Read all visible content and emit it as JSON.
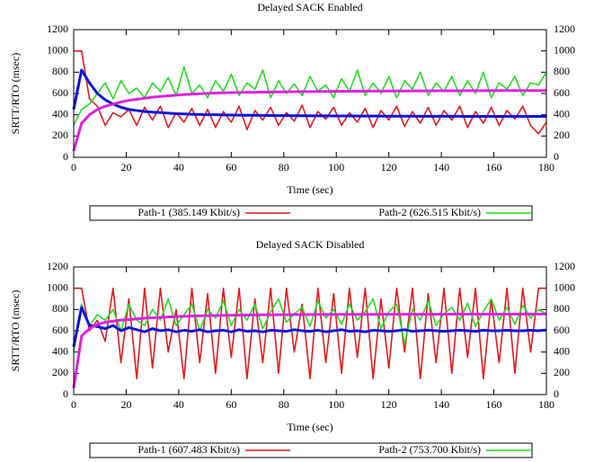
{
  "chart_data": [
    {
      "type": "line",
      "title": "Delayed SACK Enabled",
      "x_label": "Time (sec)",
      "y_label": "SRTT/RTO (msec)",
      "x": [
        0,
        3,
        6,
        9,
        12,
        15,
        18,
        21,
        24,
        27,
        30,
        33,
        36,
        39,
        42,
        45,
        48,
        51,
        54,
        57,
        60,
        63,
        66,
        69,
        72,
        75,
        78,
        81,
        84,
        87,
        90,
        93,
        96,
        99,
        102,
        105,
        108,
        111,
        114,
        117,
        120,
        123,
        126,
        129,
        132,
        135,
        138,
        141,
        144,
        147,
        150,
        153,
        156,
        159,
        162,
        165,
        168,
        171,
        174,
        177,
        180
      ],
      "xlim": [
        0,
        180
      ],
      "xticks": [
        0,
        20,
        40,
        60,
        80,
        100,
        120,
        140,
        160,
        180
      ],
      "ylim": [
        0,
        1200
      ],
      "yticks": [
        0,
        200,
        400,
        600,
        800,
        1000,
        1200
      ],
      "y2lim": [
        0,
        1200
      ],
      "y2ticks": [
        0,
        200,
        400,
        600,
        800,
        1000,
        1200
      ],
      "series": [
        {
          "name": "Path-1 (385.149 Kbit/s)",
          "color": "#e41a1c",
          "values": [
            1000,
            1000,
            550,
            480,
            300,
            420,
            380,
            450,
            300,
            470,
            350,
            480,
            280,
            420,
            330,
            460,
            300,
            450,
            280,
            430,
            330,
            480,
            260,
            440,
            350,
            470,
            300,
            420,
            340,
            490,
            280,
            430,
            360,
            470,
            300,
            420,
            330,
            460,
            280,
            440,
            350,
            480,
            290,
            430,
            320,
            470,
            300,
            440,
            350,
            480,
            280,
            430,
            320,
            470,
            300,
            440,
            360,
            480,
            300,
            220,
            330
          ]
        },
        {
          "name": "Path-2 (626.515 Kbit/s)",
          "color": "#22dd22",
          "values": [
            300,
            450,
            500,
            600,
            700,
            550,
            720,
            600,
            650,
            560,
            700,
            620,
            750,
            580,
            850,
            600,
            680,
            560,
            720,
            620,
            780,
            580,
            700,
            640,
            820,
            560,
            720,
            600,
            690,
            580,
            760,
            620,
            680,
            560,
            740,
            620,
            820,
            580,
            700,
            600,
            760,
            560,
            720,
            640,
            800,
            580,
            700,
            620,
            760,
            580,
            720,
            600,
            800,
            560,
            700,
            640,
            760,
            580,
            700,
            680,
            800
          ]
        },
        {
          "color": "#0a14d8",
          "values": [
            450,
            820,
            700,
            600,
            540,
            500,
            470,
            450,
            440,
            430,
            425,
            420,
            415,
            410,
            408,
            405,
            402,
            400,
            400,
            398,
            397,
            396,
            395,
            395,
            394,
            393,
            392,
            392,
            391,
            391,
            390,
            390,
            390,
            389,
            389,
            389,
            388,
            388,
            388,
            388,
            387,
            387,
            387,
            387,
            386,
            386,
            386,
            386,
            386,
            386,
            385,
            385,
            385,
            385,
            385,
            385,
            385,
            385,
            385,
            385,
            385
          ]
        },
        {
          "color": "#e020e0",
          "values": [
            60,
            320,
            400,
            450,
            480,
            500,
            520,
            535,
            545,
            555,
            565,
            572,
            578,
            584,
            590,
            594,
            598,
            601,
            604,
            606,
            608,
            610,
            611,
            612,
            613,
            614,
            615,
            616,
            617,
            618,
            618,
            619,
            619,
            620,
            620,
            621,
            621,
            622,
            622,
            622,
            623,
            623,
            623,
            624,
            624,
            624,
            625,
            625,
            625,
            625,
            626,
            626,
            626,
            626,
            627,
            627,
            627,
            627,
            627,
            627,
            627
          ]
        }
      ]
    },
    {
      "type": "line",
      "title": "Delayed SACK Disabled",
      "x_label": "Time (sec)",
      "y_label": "SRTT/RTO (msec)",
      "x": [
        0,
        3,
        6,
        9,
        12,
        15,
        18,
        21,
        24,
        27,
        30,
        33,
        36,
        39,
        42,
        45,
        48,
        51,
        54,
        57,
        60,
        63,
        66,
        69,
        72,
        75,
        78,
        81,
        84,
        87,
        90,
        93,
        96,
        99,
        102,
        105,
        108,
        111,
        114,
        117,
        120,
        123,
        126,
        129,
        132,
        135,
        138,
        141,
        144,
        147,
        150,
        153,
        156,
        159,
        162,
        165,
        168,
        171,
        174,
        177,
        180
      ],
      "xlim": [
        0,
        180
      ],
      "xticks": [
        0,
        20,
        40,
        60,
        80,
        100,
        120,
        140,
        160,
        180
      ],
      "ylim": [
        0,
        1200
      ],
      "yticks": [
        0,
        200,
        400,
        600,
        800,
        1000,
        1200
      ],
      "y2lim": [
        0,
        1200
      ],
      "y2ticks": [
        0,
        200,
        400,
        600,
        800,
        1000,
        1200
      ],
      "series": [
        {
          "name": "Path-1 (607.483 Kbit/s)",
          "color": "#e41a1c",
          "values": [
            1000,
            1000,
            600,
            700,
            500,
            1000,
            300,
            900,
            150,
            1000,
            250,
            1000,
            400,
            800,
            150,
            1000,
            300,
            950,
            200,
            1000,
            350,
            1000,
            150,
            900,
            300,
            1000,
            200,
            1000,
            400,
            850,
            150,
            1000,
            300,
            950,
            200,
            1000,
            350,
            1000,
            150,
            900,
            250,
            1000,
            400,
            1000,
            150,
            950,
            300,
            1000,
            200,
            1000,
            350,
            1000,
            150,
            900,
            300,
            1000,
            200,
            1000,
            400,
            1000,
            1000
          ]
        },
        {
          "name": "Path-2 (753.700 Kbit/s)",
          "color": "#22dd22",
          "values": [
            400,
            850,
            650,
            750,
            700,
            800,
            600,
            850,
            700,
            650,
            800,
            700,
            900,
            650,
            750,
            850,
            600,
            800,
            720,
            880,
            650,
            800,
            700,
            850,
            620,
            780,
            900,
            680,
            760,
            820,
            640,
            880,
            720,
            800,
            660,
            850,
            700,
            780,
            900,
            620,
            780,
            850,
            480,
            800,
            700,
            880,
            650,
            760,
            820,
            700,
            860,
            640,
            780,
            900,
            700,
            820,
            660,
            840,
            720,
            800,
            760
          ]
        },
        {
          "color": "#0a14d8",
          "values": [
            450,
            820,
            650,
            640,
            620,
            650,
            600,
            630,
            610,
            590,
            620,
            600,
            610,
            590,
            605,
            595,
            610,
            590,
            600,
            605,
            590,
            610,
            595,
            600,
            590,
            605,
            600,
            595,
            610,
            600,
            595,
            605,
            590,
            600,
            610,
            595,
            600,
            590,
            605,
            600,
            595,
            600,
            610,
            595,
            600,
            605,
            600,
            595,
            600,
            605,
            600,
            595,
            605,
            600,
            600,
            605,
            600,
            600,
            605,
            600,
            607
          ]
        },
        {
          "color": "#e020e0",
          "values": [
            60,
            550,
            620,
            660,
            680,
            690,
            700,
            705,
            712,
            718,
            722,
            726,
            730,
            733,
            736,
            738,
            740,
            742,
            744,
            745,
            746,
            747,
            748,
            749,
            750,
            750,
            751,
            751,
            752,
            752,
            752,
            753,
            753,
            753,
            754,
            754,
            754,
            754,
            754,
            755,
            755,
            755,
            755,
            755,
            755,
            755,
            755,
            756,
            756,
            756,
            756,
            756,
            756,
            756,
            756,
            756,
            756,
            757,
            757,
            757,
            757
          ]
        }
      ]
    }
  ]
}
